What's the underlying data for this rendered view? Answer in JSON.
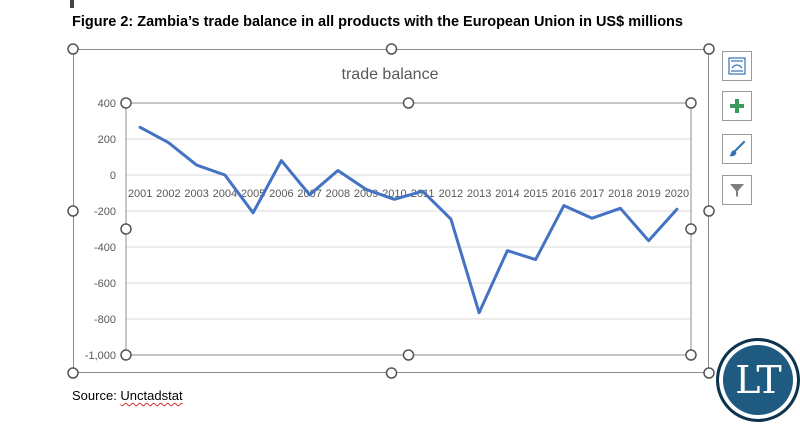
{
  "figure_title": "Figure 2: Zambia’s trade balance in all products with the European Union in US$ millions",
  "source": {
    "prefix": "Source: ",
    "name": "Unctadstat"
  },
  "side_buttons": [
    {
      "name": "chart-elements-button",
      "icon": "layout-icon"
    },
    {
      "name": "add-element-button",
      "icon": "plus-icon"
    },
    {
      "name": "chart-styles-button",
      "icon": "brush-icon"
    },
    {
      "name": "chart-filters-button",
      "icon": "filter-icon"
    }
  ],
  "logo_text": "LT",
  "colors": {
    "line": "#4472c4",
    "grid": "#d9d9d9",
    "handle": "#555555",
    "logo_bg": "#1f5a80"
  },
  "chart_data": {
    "type": "line",
    "title": "trade balance",
    "categories": [
      "2001",
      "2002",
      "2003",
      "2004",
      "2005",
      "2006",
      "2007",
      "2008",
      "2009",
      "2010",
      "2011",
      "2012",
      "2013",
      "2014",
      "2015",
      "2016",
      "2017",
      "2018",
      "2019",
      "2020"
    ],
    "series": [
      {
        "values": [
          265,
          180,
          55,
          0,
          -210,
          80,
          -110,
          25,
          -80,
          -135,
          -90,
          -245,
          -765,
          -420,
          -470,
          -170,
          -240,
          -185,
          -365,
          -190
        ]
      }
    ],
    "yticks": [
      400,
      200,
      0,
      -200,
      -400,
      -600,
      -800,
      -1000
    ],
    "ytick_labels": [
      "400",
      "200",
      "0",
      "-200",
      "-400",
      "-600",
      "-800",
      "-1,000"
    ],
    "ylim": [
      -1000,
      400
    ],
    "grid": true,
    "legend": "none",
    "xlabel": "",
    "ylabel": ""
  }
}
